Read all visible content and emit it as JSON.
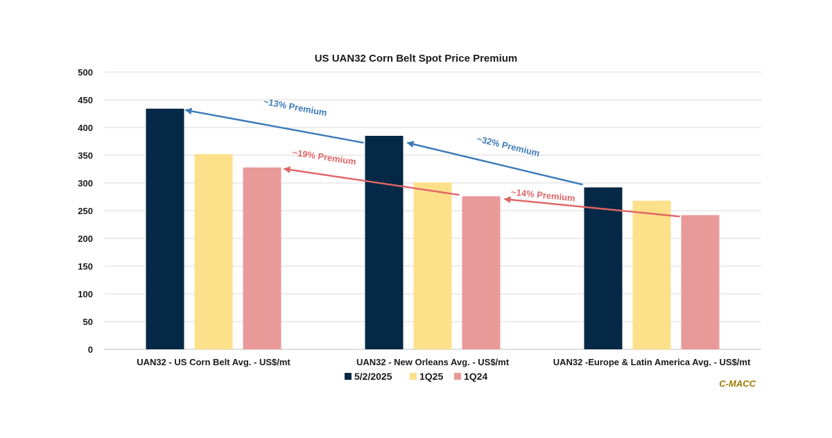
{
  "chart_data": {
    "type": "bar",
    "title": "US UAN32 Corn Belt Spot Price Premium",
    "categories": [
      "UAN32 - US Corn Belt Avg. - US$/mt",
      "UAN32 - New Orleans Avg. - US$/mt",
      "UAN32 -Europe & Latin America Avg. - US$/mt"
    ],
    "series": [
      {
        "name": "5/2/2025",
        "color": "#042845",
        "values": [
          434,
          385,
          292
        ]
      },
      {
        "name": "1Q25",
        "color": "#FDE08A",
        "values": [
          352,
          301,
          268
        ]
      },
      {
        "name": "1Q24",
        "color": "#EA9999",
        "values": [
          328,
          276,
          242
        ]
      }
    ],
    "ylim": [
      0,
      500
    ],
    "yticks": [
      0,
      50,
      100,
      150,
      200,
      250,
      300,
      350,
      400,
      450,
      500
    ],
    "grid": true,
    "legend_position": "bottom",
    "annotations": [
      {
        "text": "~13% Premium",
        "color": "#3E7CB8"
      },
      {
        "text": "~32% Premium",
        "color": "#3E7CB8"
      },
      {
        "text": "~19% Premium",
        "color": "#E06666"
      },
      {
        "text": "~14% Premium",
        "color": "#E06666"
      }
    ],
    "source": "C-MACC",
    "source_color": "#9C7A00"
  }
}
